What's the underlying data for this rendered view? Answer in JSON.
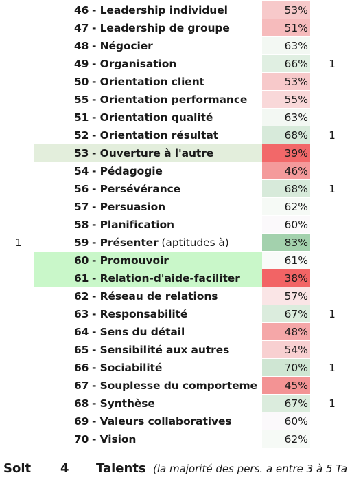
{
  "rows": [
    {
      "left": "",
      "num": "46",
      "label": "Leadership individuel",
      "note": "",
      "pct": "53%",
      "pct_color": "#f7c9ca",
      "right": "",
      "highlight": ""
    },
    {
      "left": "",
      "num": "47",
      "label": "Leadership de groupe",
      "note": "",
      "pct": "51%",
      "pct_color": "#f6bbbc",
      "right": "",
      "highlight": ""
    },
    {
      "left": "",
      "num": "48",
      "label": "Négocier",
      "note": "",
      "pct": "63%",
      "pct_color": "#f3f8f3",
      "right": "",
      "highlight": ""
    },
    {
      "left": "",
      "num": "49",
      "label": "Organisation",
      "note": "",
      "pct": "66%",
      "pct_color": "#e0efe2",
      "right": "1",
      "highlight": ""
    },
    {
      "left": "",
      "num": "50",
      "label": "Orientation client",
      "note": "",
      "pct": "53%",
      "pct_color": "#f7c9ca",
      "right": "",
      "highlight": ""
    },
    {
      "left": "",
      "num": "55",
      "label": "Orientation performance",
      "note": "",
      "pct": "55%",
      "pct_color": "#f9d8d9",
      "right": "",
      "highlight": ""
    },
    {
      "left": "",
      "num": "51",
      "label": "Orientation qualité",
      "note": "",
      "pct": "63%",
      "pct_color": "#f3f8f3",
      "right": "",
      "highlight": ""
    },
    {
      "left": "",
      "num": "52",
      "label": "Orientation résultat",
      "note": "",
      "pct": "68%",
      "pct_color": "#d7eada",
      "right": "1",
      "highlight": ""
    },
    {
      "left": "",
      "num": "53",
      "label": "Ouverture à l'autre",
      "note": "",
      "pct": "39%",
      "pct_color": "#f26869",
      "right": "",
      "highlight": "#e3eedc"
    },
    {
      "left": "",
      "num": "54",
      "label": "Pédagogie",
      "note": "",
      "pct": "46%",
      "pct_color": "#f49a9b",
      "right": "",
      "highlight": ""
    },
    {
      "left": "",
      "num": "56",
      "label": "Persévérance",
      "note": "",
      "pct": "68%",
      "pct_color": "#d7eada",
      "right": "1",
      "highlight": ""
    },
    {
      "left": "",
      "num": "57",
      "label": "Persuasion",
      "note": "",
      "pct": "62%",
      "pct_color": "#f6faf6",
      "right": "",
      "highlight": ""
    },
    {
      "left": "",
      "num": "58",
      "label": "Planification",
      "note": "",
      "pct": "60%",
      "pct_color": "#fbf9fb",
      "right": "",
      "highlight": ""
    },
    {
      "left": "1",
      "num": "59",
      "label": "Présenter",
      "note": " (aptitudes à)",
      "pct": "83%",
      "pct_color": "#a3d1ad",
      "right": "",
      "highlight": ""
    },
    {
      "left": "",
      "num": "60",
      "label": "Promouvoir",
      "note": "",
      "pct": "61%",
      "pct_color": "#f9fbf9",
      "right": "",
      "highlight": "#c9f7c9"
    },
    {
      "left": "",
      "num": "61",
      "label": "Relation-d'aide-faciliter",
      "note": "",
      "pct": "38%",
      "pct_color": "#f26465",
      "right": "",
      "highlight": "#c9f7c9"
    },
    {
      "left": "",
      "num": "62",
      "label": "Réseau de relations",
      "note": "",
      "pct": "57%",
      "pct_color": "#fae5e6",
      "right": "",
      "highlight": ""
    },
    {
      "left": "",
      "num": "63",
      "label": "Responsabilité",
      "note": "",
      "pct": "67%",
      "pct_color": "#dbecdd",
      "right": "1",
      "highlight": ""
    },
    {
      "left": "",
      "num": "64",
      "label": "Sens du détail",
      "note": "",
      "pct": "48%",
      "pct_color": "#f5a7a8",
      "right": "",
      "highlight": ""
    },
    {
      "left": "",
      "num": "65",
      "label": "Sensibilité aux autres",
      "note": "",
      "pct": "54%",
      "pct_color": "#f8d0d1",
      "right": "",
      "highlight": ""
    },
    {
      "left": "",
      "num": "66",
      "label": "Sociabilité",
      "note": "",
      "pct": "70%",
      "pct_color": "#cfe6d3",
      "right": "1",
      "highlight": ""
    },
    {
      "left": "",
      "num": "67",
      "label": "Souplesse du comporteme",
      "note": "",
      "pct": "45%",
      "pct_color": "#f39394",
      "right": "",
      "highlight": ""
    },
    {
      "left": "",
      "num": "68",
      "label": "Synthèse",
      "note": "",
      "pct": "67%",
      "pct_color": "#dbecdd",
      "right": "1",
      "highlight": ""
    },
    {
      "left": "",
      "num": "69",
      "label": "Valeurs collaboratives",
      "note": "",
      "pct": "60%",
      "pct_color": "#fbf9fb",
      "right": "",
      "highlight": ""
    },
    {
      "left": "",
      "num": "70",
      "label": "Vision",
      "note": "",
      "pct": "62%",
      "pct_color": "#f6faf6",
      "right": "",
      "highlight": ""
    }
  ],
  "footer": {
    "soit": "Soit",
    "count": "4",
    "talents": "Talents",
    "note": "(la majorité des pers. a entre 3 à 5 Ta"
  }
}
